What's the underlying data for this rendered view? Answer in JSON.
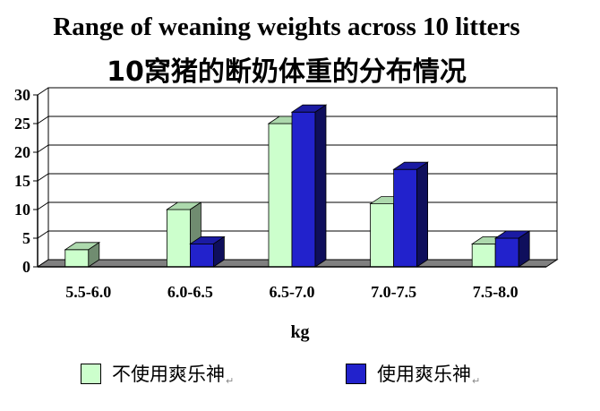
{
  "chart_data": {
    "type": "bar",
    "title": "Range of weaning weights across 10 litters",
    "subtitle": "10窝猪的断奶体重的分布情况",
    "xlabel": "kg",
    "ylabel": "",
    "ylim": [
      0,
      30
    ],
    "yticks": [
      0,
      5,
      10,
      15,
      20,
      25,
      30
    ],
    "categories": [
      "5.5-6.0",
      "6.0-6.5",
      "6.5-7.0",
      "7.0-7.5",
      "7.5-8.0"
    ],
    "series": [
      {
        "name": "不使用爽乐神",
        "color": "#ccffcc",
        "values": [
          3,
          10,
          25,
          11,
          4
        ]
      },
      {
        "name": "使用爽乐神",
        "color": "#2222cc",
        "values": [
          0,
          4,
          27,
          17,
          5
        ]
      }
    ],
    "legend": "bottom",
    "grid": true,
    "style": "3d-bar"
  }
}
